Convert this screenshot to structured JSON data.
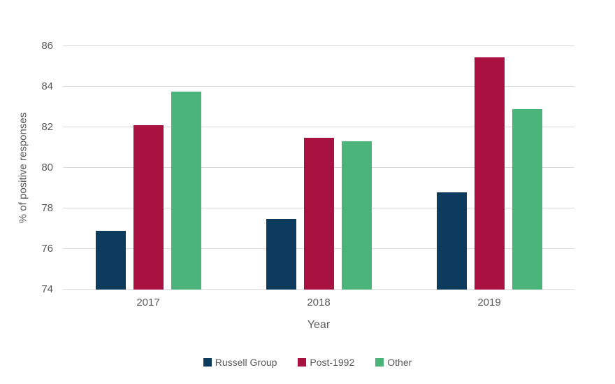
{
  "chart_data": {
    "type": "bar",
    "title": "",
    "categories": [
      "2017",
      "2018",
      "2019"
    ],
    "series": [
      {
        "name": "Russell Group",
        "color": "#0d3b5e",
        "values": [
          76.9,
          77.5,
          78.8
        ]
      },
      {
        "name": "Post-1992",
        "color": "#a91240",
        "values": [
          82.1,
          81.5,
          85.45
        ]
      },
      {
        "name": "Other",
        "color": "#4ab47a",
        "values": [
          83.75,
          81.3,
          82.9
        ]
      }
    ],
    "xlabel": "Year",
    "ylabel": "% of positive responses",
    "ylim": [
      74,
      86
    ],
    "yticks": [
      74,
      76,
      78,
      80,
      82,
      84,
      86
    ],
    "grid": true,
    "legend_position": "bottom",
    "gridline_color": "#d9d9d9",
    "text_color": "#595959",
    "background_color": "#ffffff"
  }
}
